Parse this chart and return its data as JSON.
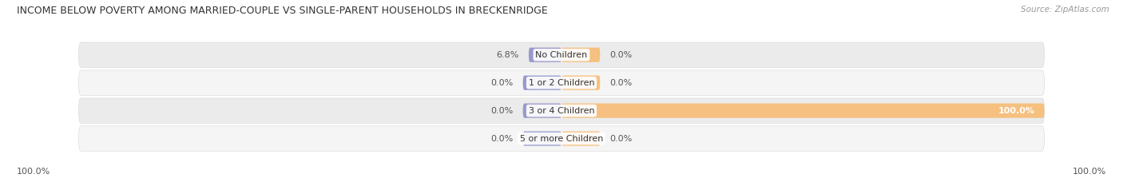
{
  "title": "INCOME BELOW POVERTY AMONG MARRIED-COUPLE VS SINGLE-PARENT HOUSEHOLDS IN BRECKENRIDGE",
  "source": "Source: ZipAtlas.com",
  "categories": [
    "No Children",
    "1 or 2 Children",
    "3 or 4 Children",
    "5 or more Children"
  ],
  "married_values": [
    6.8,
    0.0,
    0.0,
    0.0
  ],
  "single_values": [
    0.0,
    0.0,
    100.0,
    0.0
  ],
  "married_color": "#7b7fc4",
  "single_color": "#f0a050",
  "married_color_light": "#9999cc",
  "single_color_light": "#f5c080",
  "row_bg_color_odd": "#ebebeb",
  "row_bg_color_even": "#f5f5f5",
  "title_fontsize": 9.0,
  "source_fontsize": 7.5,
  "label_fontsize": 8.0,
  "category_fontsize": 8.0,
  "legend_fontsize": 8.5,
  "max_val": 100,
  "left_axis_label": "100.0%",
  "right_axis_label": "100.0%",
  "background_color": "#ffffff"
}
